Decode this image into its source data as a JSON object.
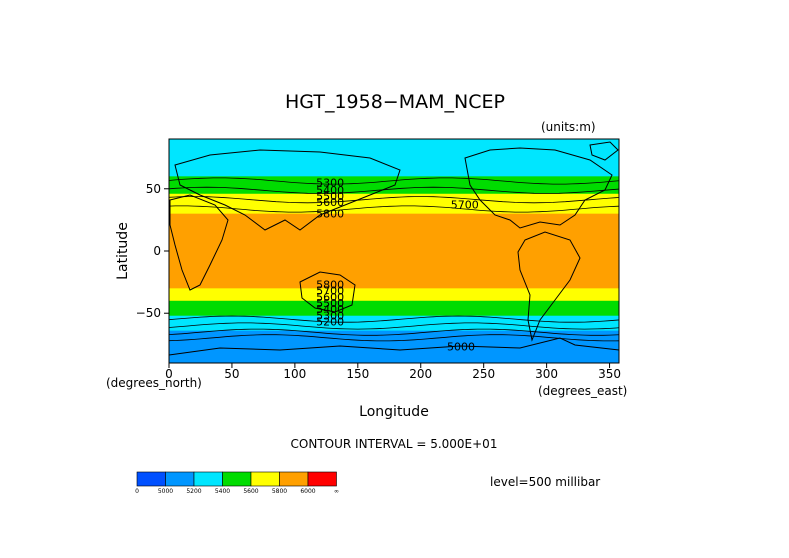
{
  "chart_data": {
    "type": "heatmap",
    "title": "HGT_1958−MAM_NCEP",
    "units_note": "(units:m)",
    "xlabel": "Longitude",
    "ylabel": "Latitude",
    "x_unit_note": "(degrees_east)",
    "y_unit_note": "(degrees_north)",
    "xlim": [
      0,
      357.5
    ],
    "ylim": [
      -90,
      90
    ],
    "xticks": [
      "0",
      "50",
      "100",
      "150",
      "200",
      "250",
      "300",
      "350"
    ],
    "yticks": [
      "50",
      "0",
      "−50"
    ],
    "ytick_values": [
      50,
      0,
      -50
    ],
    "xtick_values": [
      0,
      50,
      100,
      150,
      200,
      250,
      300,
      350
    ],
    "contour_interval_text": "CONTOUR INTERVAL = 5.000E+01",
    "level_text": "level=500 millibar",
    "colorbar": {
      "colors": [
        "#0050ff",
        "#0096ff",
        "#00e6ff",
        "#00dc00",
        "#ffff00",
        "#ffa000",
        "#ff0000"
      ],
      "labels": [
        "0",
        "5000",
        "5200",
        "5400",
        "5600",
        "5800",
        "6000",
        "∞"
      ]
    },
    "zonal_bands": [
      {
        "lat": 90,
        "value": 5200
      },
      {
        "lat": 72,
        "value": 5200
      },
      {
        "lat": 60,
        "value": 5400
      },
      {
        "lat": 45,
        "value": 5600
      },
      {
        "lat": 30,
        "value": 5800
      },
      {
        "lat": 20,
        "value": 5850
      },
      {
        "lat": -20,
        "value": 5850
      },
      {
        "lat": -30,
        "value": 5800
      },
      {
        "lat": -40,
        "value": 5600
      },
      {
        "lat": -52,
        "value": 5400
      },
      {
        "lat": -63,
        "value": 5200
      },
      {
        "lat": -72,
        "value": 5000
      },
      {
        "lat": -90,
        "value": 5000
      }
    ],
    "contour_labels": [
      {
        "text": "5300",
        "lon": 128,
        "lat": 52
      },
      {
        "text": "5400",
        "lon": 128,
        "lat": 46
      },
      {
        "text": "5500",
        "lon": 128,
        "lat": 41
      },
      {
        "text": "5600",
        "lon": 128,
        "lat": 36
      },
      {
        "text": "5700",
        "lon": 235,
        "lat": 34
      },
      {
        "text": "5800",
        "lon": 128,
        "lat": 27
      },
      {
        "text": "5800",
        "lon": 128,
        "lat": -30
      },
      {
        "text": "5700",
        "lon": 128,
        "lat": -35
      },
      {
        "text": "5600",
        "lon": 128,
        "lat": -40
      },
      {
        "text": "5500",
        "lon": 128,
        "lat": -45
      },
      {
        "text": "5400",
        "lon": 128,
        "lat": -50
      },
      {
        "text": "5300",
        "lon": 128,
        "lat": -55
      },
      {
        "text": "5200",
        "lon": 128,
        "lat": -60
      },
      {
        "text": "5000",
        "lon": 232,
        "lat": -80
      }
    ]
  }
}
